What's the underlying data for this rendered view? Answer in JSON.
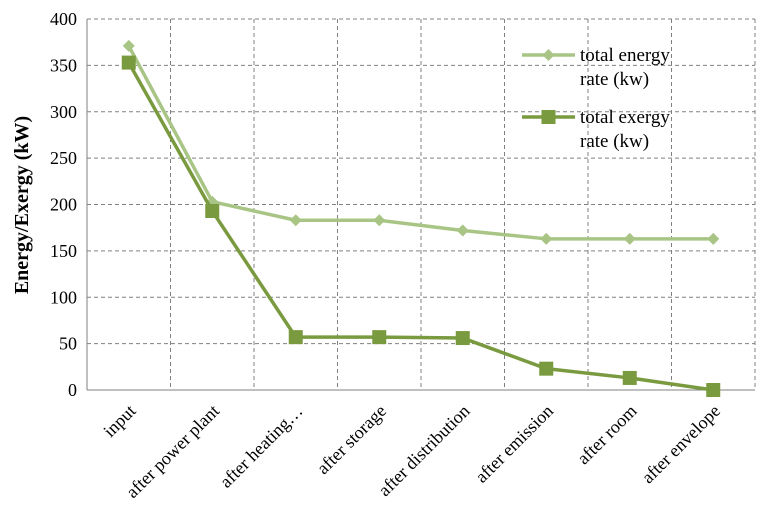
{
  "chart_data": {
    "type": "line",
    "title": "",
    "xlabel": "",
    "ylabel": "Energy/Exergy (kW)",
    "ylim": [
      0,
      400
    ],
    "yticks": [
      0,
      50,
      100,
      150,
      200,
      250,
      300,
      350,
      400
    ],
    "grid": true,
    "legend_position": "top-right",
    "categories": [
      "input",
      "after power plant",
      "after heating…",
      "after storage",
      "after distribution",
      "after emission",
      "after room",
      "after envelope"
    ],
    "series": [
      {
        "name": "total energy rate (kw)",
        "name_lines": [
          "total energy",
          "rate (kw)"
        ],
        "color": "#a8c585",
        "marker": "diamond",
        "values": [
          371,
          203,
          183,
          183,
          172,
          163,
          163,
          163
        ]
      },
      {
        "name": "total exergy rate (kw)",
        "name_lines": [
          "total exergy",
          "rate (kw)"
        ],
        "color": "#7a9a3f",
        "marker": "square",
        "values": [
          353,
          193,
          57,
          57,
          56,
          23,
          13,
          0
        ]
      }
    ]
  }
}
